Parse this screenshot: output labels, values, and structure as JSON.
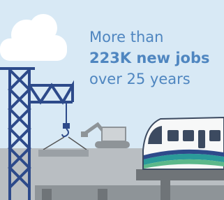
{
  "headline": {
    "line1": "More than",
    "line2": "223K new jobs",
    "line3": "over 25 years"
  }
}
